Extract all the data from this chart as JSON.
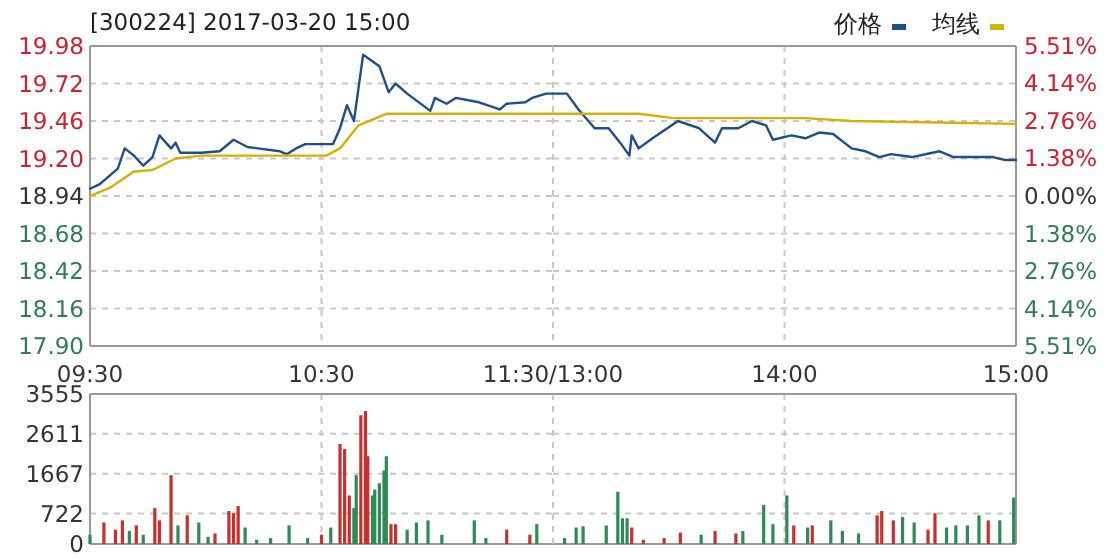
{
  "chart_data": [
    {
      "type": "line",
      "title": "[300224] 2017-03-20 15:00",
      "grid": true,
      "xlim": [
        9.5,
        11.5
      ],
      "xticks": [
        {
          "value": 9.5,
          "label": "09:30"
        },
        {
          "value": 10.5,
          "label": "10:30"
        },
        {
          "value": 11.5,
          "label": "11:30/13:00"
        }
      ],
      "ylim": [
        17.9,
        19.98
      ],
      "yticks": [
        {
          "value": 17.9,
          "label": "17.90"
        },
        {
          "value": 18.16,
          "label": "18.16"
        },
        {
          "value": 18.42,
          "label": "18.42"
        },
        {
          "value": 18.68,
          "label": "18.68"
        },
        {
          "value": 18.94,
          "label": "18.94"
        },
        {
          "value": 19.2,
          "label": "19.20"
        },
        {
          "value": 19.46,
          "label": "19.46"
        },
        {
          "value": 19.72,
          "label": "19.72"
        },
        {
          "value": 19.98,
          "label": "19.98"
        }
      ],
      "series": [
        {
          "color": "#1f4e8c",
          "x": [
            9.5,
            9.54,
            9.57,
            9.62,
            9.65,
            9.69,
            9.73,
            9.77,
            9.8,
            9.85,
            9.87,
            9.89,
            9.98,
            10.06,
            10.12,
            10.18,
            10.32,
            10.35,
            10.39,
            10.43,
            10.55,
            10.58,
            10.61,
            10.64,
            10.68,
            10.75,
            10.79,
            10.82,
            10.87,
            10.97,
            10.99,
            11.04,
            11.08,
            11.18,
            11.27,
            11.3,
            11.38,
            11.41,
            11.47,
            11.5
          ],
          "values": [
            18.99,
            19.02,
            19.06,
            19.13,
            19.27,
            19.22,
            19.15,
            19.21,
            19.36,
            19.27,
            19.31,
            19.24,
            19.24,
            19.25,
            19.33,
            19.28,
            19.25,
            19.23,
            19.27,
            19.3,
            19.3,
            19.41,
            19.57,
            19.46,
            19.92,
            19.84,
            19.66,
            19.72,
            19.65,
            19.53,
            19.62,
            19.58,
            19.62,
            19.59,
            19.54,
            19.58,
            19.59,
            19.62,
            19.65,
            19.65
          ]
        },
        {
          "color": "#d4b106",
          "x": [
            9.5,
            9.59,
            9.69,
            9.77,
            9.87,
            9.98,
            10.52,
            10.58,
            10.66,
            10.78,
            11.5
          ],
          "values": [
            18.94,
            19.0,
            19.11,
            19.12,
            19.2,
            19.22,
            19.22,
            19.27,
            19.43,
            19.51,
            19.51
          ]
        }
      ]
    },
    {
      "type": "line",
      "legend": "top right",
      "grid": true,
      "tick_labels": "x",
      "xlim": [
        13,
        15
      ],
      "xticks": [
        {
          "value": 13,
          "label": null
        },
        {
          "value": 14,
          "label": "14:00"
        },
        {
          "value": 15,
          "label": "15:00"
        }
      ],
      "ylim": [
        17.9,
        19.98
      ],
      "yticks": [
        {
          "value": 17.9,
          "label": null
        },
        {
          "value": 18.16,
          "label": null
        },
        {
          "value": 18.42,
          "label": null
        },
        {
          "value": 18.68,
          "label": null
        },
        {
          "value": 18.94,
          "label": null
        },
        {
          "value": 19.2,
          "label": null
        },
        {
          "value": 19.46,
          "label": null
        },
        {
          "value": 19.72,
          "label": null
        },
        {
          "value": 19.98,
          "label": null
        }
      ],
      "y2lim": [
        -5.51,
        5.51
      ],
      "y2ticks": [
        {
          "value": -5.51,
          "label": "5.51%"
        },
        {
          "value": -4.14,
          "label": "4.14%"
        },
        {
          "value": -2.76,
          "label": "2.76%"
        },
        {
          "value": -1.38,
          "label": "1.38%"
        },
        {
          "value": 0,
          "label": "0.00%"
        },
        {
          "value": 1.38,
          "label": "1.38%"
        },
        {
          "value": 2.76,
          "label": "2.76%"
        },
        {
          "value": 4.14,
          "label": "4.14%"
        },
        {
          "value": 5.51,
          "label": "5.51%"
        }
      ],
      "series": [
        {
          "name": "价格",
          "color": "#1f4e8c",
          "x": [
            13.0,
            13.06,
            13.11,
            13.18,
            13.24,
            13.29,
            13.33,
            13.34,
            13.37,
            13.43,
            13.54,
            13.63,
            13.7,
            13.73,
            13.8,
            13.86,
            13.92,
            13.95,
            14.03,
            14.09,
            14.15,
            14.21,
            14.29,
            14.35,
            14.41,
            14.46,
            14.55,
            14.67,
            14.73,
            14.81,
            14.9,
            14.95,
            15
          ],
          "values": [
            19.65,
            19.65,
            19.54,
            19.41,
            19.41,
            19.31,
            19.22,
            19.36,
            19.27,
            19.34,
            19.46,
            19.41,
            19.31,
            19.41,
            19.41,
            19.46,
            19.43,
            19.33,
            19.36,
            19.34,
            19.38,
            19.37,
            19.27,
            19.25,
            19.21,
            19.23,
            19.21,
            19.25,
            19.21,
            19.21,
            19.21,
            19.19,
            19.19
          ]
        },
        {
          "name": "均线",
          "color": "#d4b106",
          "x": [
            13.0,
            13.37,
            13.52,
            14.09,
            14.29,
            14.67,
            15
          ],
          "values": [
            19.51,
            19.51,
            19.48,
            19.48,
            19.46,
            19.45,
            19.44
          ]
        }
      ]
    },
    {
      "type": "bar",
      "grid": true,
      "tick_labels": "y",
      "xlim": [
        9.5,
        11.5
      ],
      "xticks": [
        {
          "value": 9.5,
          "label": null
        },
        {
          "value": 10.5,
          "label": null
        },
        {
          "value": 11.5,
          "label": null
        }
      ],
      "ylim": [
        0,
        3555
      ],
      "yticks": [
        0,
        722,
        1667,
        2611,
        3555
      ],
      "x": [
        9.5,
        9.56,
        9.61,
        9.64,
        9.67,
        9.7,
        9.73,
        9.78,
        9.8,
        9.85,
        9.88,
        9.92,
        9.97,
        10.01,
        10.04,
        10.1,
        10.12,
        10.14,
        10.17,
        10.22,
        10.28,
        10.36,
        10.44,
        10.5,
        10.54,
        10.58,
        10.6,
        10.62,
        10.64,
        10.65,
        10.67,
        10.69,
        10.7,
        10.72,
        10.73,
        10.75,
        10.77,
        10.78,
        10.8,
        10.82,
        10.87,
        10.91,
        10.96,
        11.02,
        11.16,
        11.21,
        11.3,
        11.4,
        11.43
      ],
      "values": [
        220,
        510,
        340,
        560,
        310,
        440,
        220,
        850,
        560,
        1630,
        440,
        680,
        510,
        170,
        250,
        780,
        730,
        900,
        390,
        100,
        140,
        440,
        140,
        220,
        390,
        2370,
        2250,
        1150,
        850,
        1630,
        3050,
        3150,
        2080,
        1150,
        1290,
        1440,
        1740,
        2080,
        470,
        470,
        340,
        510,
        560,
        220,
        560,
        140,
        340,
        220,
        470
      ],
      "colors": [
        "#2e8b57",
        "#c8302f",
        "#c8302f",
        "#c8302f",
        "#2e8b57",
        "#c8302f",
        "#2e8b57",
        "#c8302f",
        "#c8302f",
        "#c8302f",
        "#2e8b57",
        "#c8302f",
        "#2e8b57",
        "#2e8b57",
        "#c8302f",
        "#c8302f",
        "#c8302f",
        "#c8302f",
        "#2e8b57",
        "#2e8b57",
        "#2e8b57",
        "#2e8b57",
        "#2e8b57",
        "#c8302f",
        "#2e8b57",
        "#c8302f",
        "#c8302f",
        "#c8302f",
        "#2e8b57",
        "#2e8b57",
        "#c8302f",
        "#c8302f",
        "#c8302f",
        "#2e8b57",
        "#2e8b57",
        "#2e8b57",
        "#2e8b57",
        "#2e8b57",
        "#c8302f",
        "#c8302f",
        "#2e8b57",
        "#2e8b57",
        "#2e8b57",
        "#2e8b57",
        "#2e8b57",
        "#2e8b57",
        "#c8302f",
        "#c8302f",
        "#2e8b57"
      ]
    },
    {
      "type": "bar",
      "grid": true,
      "tick_labels": false,
      "xlim": [
        13,
        15
      ],
      "xticks": [
        {
          "value": 13,
          "label": null
        },
        {
          "value": 14,
          "label": null
        },
        {
          "value": 15,
          "label": null
        }
      ],
      "ylim": [
        0,
        3555
      ],
      "yticks": [
        {
          "value": 0,
          "label": null
        },
        {
          "value": 722,
          "label": null
        },
        {
          "value": 1667,
          "label": null
        },
        {
          "value": 2611,
          "label": null
        },
        {
          "value": 3555,
          "label": null
        }
      ],
      "x": [
        13.05,
        13.1,
        13.13,
        13.23,
        13.28,
        13.3,
        13.32,
        13.34,
        13.39,
        13.48,
        13.55,
        13.64,
        13.7,
        13.79,
        13.82,
        13.91,
        13.95,
        14.01,
        14.04,
        14.1,
        14.12,
        14.2,
        14.25,
        14.32,
        14.4,
        14.42,
        14.47,
        14.51,
        14.56,
        14.62,
        14.65,
        14.7,
        14.74,
        14.79,
        14.84,
        14.88,
        14.93,
        14.99
      ],
      "values": [
        140,
        390,
        420,
        440,
        1240,
        610,
        610,
        390,
        100,
        140,
        270,
        220,
        310,
        250,
        310,
        930,
        470,
        1150,
        440,
        390,
        440,
        560,
        310,
        250,
        680,
        780,
        560,
        640,
        510,
        340,
        730,
        390,
        440,
        440,
        680,
        560,
        560,
        1100
      ],
      "colors": [
        "#2e8b57",
        "#2e8b57",
        "#2e8b57",
        "#2e8b57",
        "#2e8b57",
        "#2e8b57",
        "#2e8b57",
        "#c8302f",
        "#c8302f",
        "#c8302f",
        "#c8302f",
        "#2e8b57",
        "#c8302f",
        "#c8302f",
        "#2e8b57",
        "#2e8b57",
        "#2e8b57",
        "#2e8b57",
        "#c8302f",
        "#2e8b57",
        "#c8302f",
        "#2e8b57",
        "#2e8b57",
        "#2e8b57",
        "#c8302f",
        "#c8302f",
        "#c8302f",
        "#2e8b57",
        "#2e8b57",
        "#c8302f",
        "#c8302f",
        "#2e8b57",
        "#2e8b57",
        "#2e8b57",
        "#2e8b57",
        "#c8302f",
        "#2e8b57",
        "#2e8b57"
      ]
    }
  ]
}
